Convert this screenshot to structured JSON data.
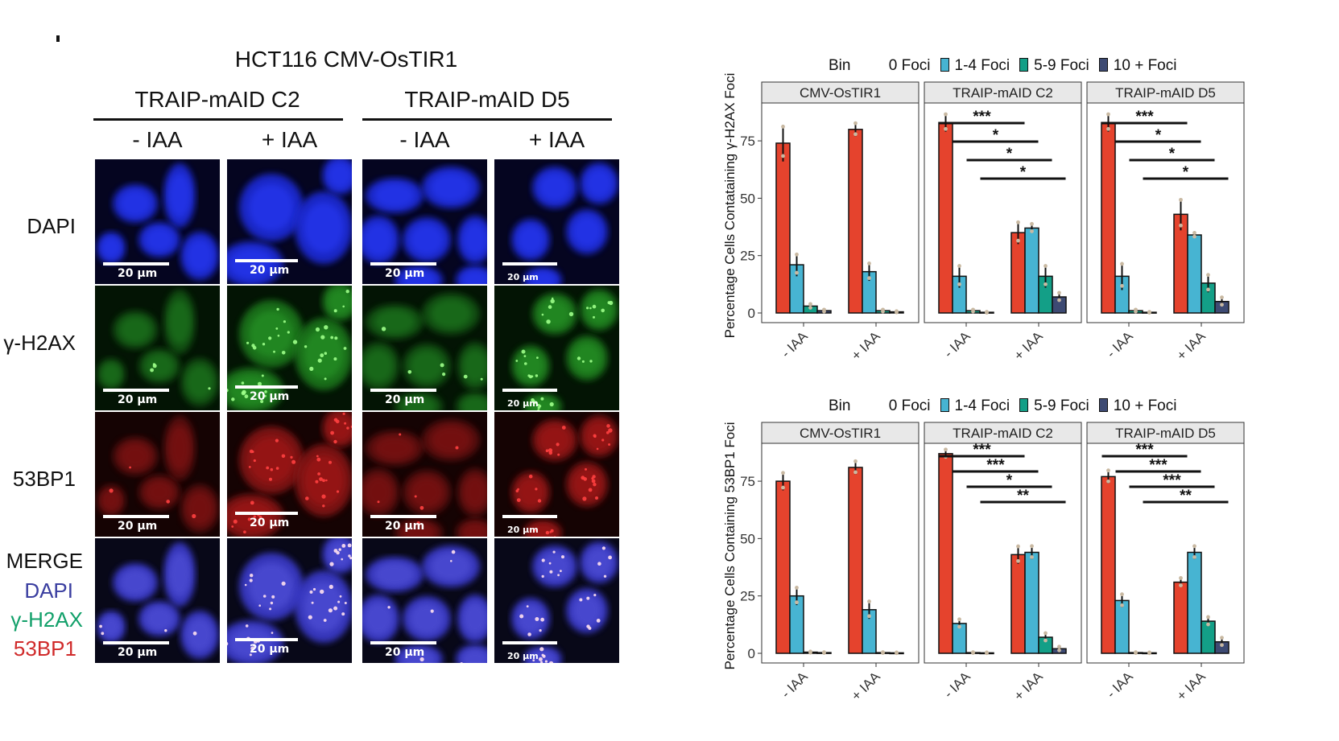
{
  "panel_a": {
    "title": "HCT116 CMV-OsTIR1",
    "groups": [
      "TRAIP-mAID C2",
      "TRAIP-mAID D5"
    ],
    "columns": [
      "- IAA",
      "+ IAA",
      "- IAA",
      "+ IAA"
    ],
    "rows": [
      "DAPI",
      "γ-H2AX",
      "53BP1",
      "MERGE"
    ],
    "merge_channels": [
      {
        "label": "DAPI",
        "color": "#3a3ea0"
      },
      {
        "label": "γ-H2AX",
        "color": "#12a06a"
      },
      {
        "label": "53BP1",
        "color": "#d02a2a"
      }
    ],
    "scale_bar": "20 µm"
  },
  "legend": {
    "title": "Bin",
    "items": [
      {
        "label": "0 Foci",
        "color": "#e5432d"
      },
      {
        "label": "1-4 Foci",
        "color": "#47b4d2"
      },
      {
        "label": "5-9 Foci",
        "color": "#139f87"
      },
      {
        "label": "10 + Foci",
        "color": "#3d4a73"
      }
    ]
  },
  "chart_data": [
    {
      "type": "bar",
      "ylabel": "Percentage Cells Contataining γ-H2AX Foci",
      "ylim": [
        0,
        88
      ],
      "yticks": [
        0,
        25,
        50,
        75
      ],
      "categories": [
        "- IAA",
        "+ IAA"
      ],
      "facets": [
        {
          "name": "CMV-OsTIR1",
          "groups": [
            {
              "x": "- IAA",
              "values": [
                74,
                21,
                3,
                1
              ],
              "errors": [
                8,
                5,
                1,
                0.5
              ]
            },
            {
              "x": "+ IAA",
              "values": [
                80,
                18,
                1,
                0.5
              ],
              "errors": [
                3,
                4,
                0.5,
                0.3
              ]
            }
          ],
          "sig": []
        },
        {
          "name": "TRAIP-mAID C2",
          "groups": [
            {
              "x": "- IAA",
              "values": [
                83,
                16,
                1,
                0.3
              ],
              "errors": [
                4,
                5,
                0.5,
                0.2
              ]
            },
            {
              "x": "+ IAA",
              "values": [
                35,
                37,
                16,
                7
              ],
              "errors": [
                5,
                2,
                5,
                2
              ]
            }
          ],
          "sig": [
            {
              "label": "***",
              "from": 0,
              "to": 4
            },
            {
              "label": "*",
              "from": 1,
              "to": 5
            },
            {
              "label": "*",
              "from": 2,
              "to": 6
            },
            {
              "label": "*",
              "from": 3,
              "to": 7
            }
          ]
        },
        {
          "name": "TRAIP-mAID D5",
          "groups": [
            {
              "x": "- IAA",
              "values": [
                83,
                16,
                1,
                0.3
              ],
              "errors": [
                4,
                6,
                0.5,
                0.2
              ]
            },
            {
              "x": "+ IAA",
              "values": [
                43,
                34,
                13,
                5
              ],
              "errors": [
                7,
                1,
                4,
                2
              ]
            }
          ],
          "sig": [
            {
              "label": "***",
              "from": 0,
              "to": 4
            },
            {
              "label": "*",
              "from": 1,
              "to": 5
            },
            {
              "label": "*",
              "from": 2,
              "to": 6
            },
            {
              "label": "*",
              "from": 3,
              "to": 7
            }
          ]
        }
      ]
    },
    {
      "type": "bar",
      "ylabel": "Percentage Cells Containing 53BP1 Foci",
      "ylim": [
        0,
        88
      ],
      "yticks": [
        0,
        25,
        50,
        75
      ],
      "categories": [
        "- IAA",
        "+ IAA"
      ],
      "facets": [
        {
          "name": "CMV-OsTIR1",
          "groups": [
            {
              "x": "- IAA",
              "values": [
                75,
                25,
                0.5,
                0.3
              ],
              "errors": [
                4,
                4,
                0.3,
                0.2
              ]
            },
            {
              "x": "+ IAA",
              "values": [
                81,
                19,
                0.3,
                0.2
              ],
              "errors": [
                3,
                4,
                0.2,
                0.2
              ]
            }
          ],
          "sig": []
        },
        {
          "name": "TRAIP-mAID C2",
          "groups": [
            {
              "x": "- IAA",
              "values": [
                87,
                13,
                0.3,
                0.2
              ],
              "errors": [
                2,
                2,
                0.2,
                0.2
              ]
            },
            {
              "x": "+ IAA",
              "values": [
                43,
                44,
                7,
                2
              ],
              "errors": [
                4,
                3,
                2,
                1
              ]
            }
          ],
          "sig": [
            {
              "label": "***",
              "from": 0,
              "to": 4
            },
            {
              "label": "***",
              "from": 1,
              "to": 5
            },
            {
              "label": "*",
              "from": 2,
              "to": 6
            },
            {
              "label": "**",
              "from": 3,
              "to": 7
            }
          ]
        },
        {
          "name": "TRAIP-mAID D5",
          "groups": [
            {
              "x": "- IAA",
              "values": [
                77,
                23,
                0.3,
                0.2
              ],
              "errors": [
                3,
                3,
                0.2,
                0.2
              ]
            },
            {
              "x": "+ IAA",
              "values": [
                31,
                44,
                14,
                5
              ],
              "errors": [
                2,
                3,
                2,
                2
              ]
            }
          ],
          "sig": [
            {
              "label": "***",
              "from": 0,
              "to": 4
            },
            {
              "label": "***",
              "from": 1,
              "to": 5
            },
            {
              "label": "***",
              "from": 2,
              "to": 6
            },
            {
              "label": "**",
              "from": 3,
              "to": 7
            }
          ]
        }
      ]
    }
  ]
}
